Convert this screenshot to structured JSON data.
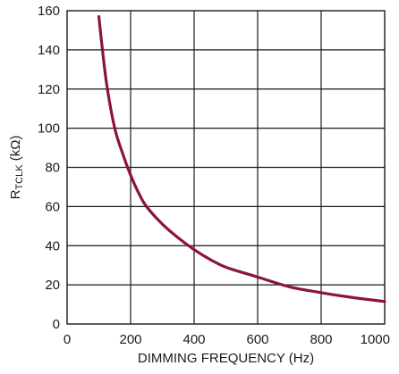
{
  "chart_data": {
    "type": "line",
    "title": "",
    "xlabel": "DIMMING FREQUENCY (Hz)",
    "ylabel_main": "R",
    "ylabel_sub": "TCLK",
    "ylabel_unit": " (kΩ)",
    "xlim": [
      0,
      1000
    ],
    "ylim": [
      0,
      160
    ],
    "x_ticks": [
      "0",
      "200",
      "400",
      "600",
      "800",
      "1000"
    ],
    "y_ticks": [
      "0",
      "20",
      "40",
      "60",
      "80",
      "100",
      "120",
      "140",
      "160"
    ],
    "grid": true,
    "legend": "none",
    "series": [
      {
        "color": "#8a1538",
        "x": [
          100,
          110,
          125,
          150,
          175,
          200,
          225,
          250,
          300,
          350,
          400,
          450,
          500,
          600,
          700,
          800,
          900,
          1000
        ],
        "y": [
          157,
          142,
          122,
          100,
          87,
          76,
          67,
          60,
          51,
          44,
          38,
          33,
          29,
          24,
          19,
          16,
          13.5,
          11.5
        ]
      }
    ]
  }
}
